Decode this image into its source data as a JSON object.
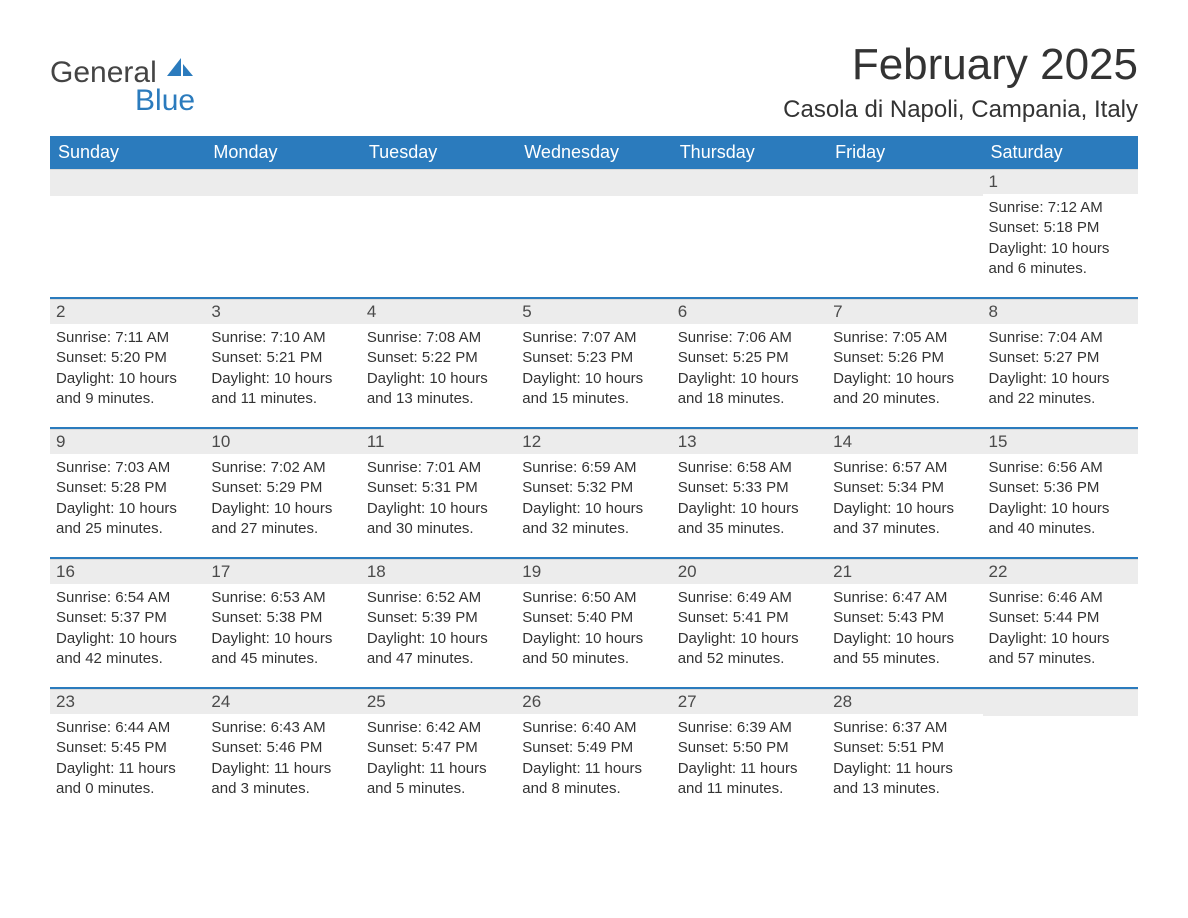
{
  "logo": {
    "text1": "General",
    "text2": "Blue"
  },
  "title": "February 2025",
  "location": "Casola di Napoli, Campania, Italy",
  "colors": {
    "header_bg": "#2b7bbd",
    "header_text": "#ffffff",
    "daynum_bg": "#ececec",
    "sep": "#2b7bbd",
    "text": "#333333",
    "page_bg": "#ffffff"
  },
  "dayNames": [
    "Sunday",
    "Monday",
    "Tuesday",
    "Wednesday",
    "Thursday",
    "Friday",
    "Saturday"
  ],
  "weeks": [
    [
      null,
      null,
      null,
      null,
      null,
      null,
      {
        "n": "1",
        "sr": "Sunrise: 7:12 AM",
        "ss": "Sunset: 5:18 PM",
        "dl": "Daylight: 10 hours and 6 minutes."
      }
    ],
    [
      {
        "n": "2",
        "sr": "Sunrise: 7:11 AM",
        "ss": "Sunset: 5:20 PM",
        "dl": "Daylight: 10 hours and 9 minutes."
      },
      {
        "n": "3",
        "sr": "Sunrise: 7:10 AM",
        "ss": "Sunset: 5:21 PM",
        "dl": "Daylight: 10 hours and 11 minutes."
      },
      {
        "n": "4",
        "sr": "Sunrise: 7:08 AM",
        "ss": "Sunset: 5:22 PM",
        "dl": "Daylight: 10 hours and 13 minutes."
      },
      {
        "n": "5",
        "sr": "Sunrise: 7:07 AM",
        "ss": "Sunset: 5:23 PM",
        "dl": "Daylight: 10 hours and 15 minutes."
      },
      {
        "n": "6",
        "sr": "Sunrise: 7:06 AM",
        "ss": "Sunset: 5:25 PM",
        "dl": "Daylight: 10 hours and 18 minutes."
      },
      {
        "n": "7",
        "sr": "Sunrise: 7:05 AM",
        "ss": "Sunset: 5:26 PM",
        "dl": "Daylight: 10 hours and 20 minutes."
      },
      {
        "n": "8",
        "sr": "Sunrise: 7:04 AM",
        "ss": "Sunset: 5:27 PM",
        "dl": "Daylight: 10 hours and 22 minutes."
      }
    ],
    [
      {
        "n": "9",
        "sr": "Sunrise: 7:03 AM",
        "ss": "Sunset: 5:28 PM",
        "dl": "Daylight: 10 hours and 25 minutes."
      },
      {
        "n": "10",
        "sr": "Sunrise: 7:02 AM",
        "ss": "Sunset: 5:29 PM",
        "dl": "Daylight: 10 hours and 27 minutes."
      },
      {
        "n": "11",
        "sr": "Sunrise: 7:01 AM",
        "ss": "Sunset: 5:31 PM",
        "dl": "Daylight: 10 hours and 30 minutes."
      },
      {
        "n": "12",
        "sr": "Sunrise: 6:59 AM",
        "ss": "Sunset: 5:32 PM",
        "dl": "Daylight: 10 hours and 32 minutes."
      },
      {
        "n": "13",
        "sr": "Sunrise: 6:58 AM",
        "ss": "Sunset: 5:33 PM",
        "dl": "Daylight: 10 hours and 35 minutes."
      },
      {
        "n": "14",
        "sr": "Sunrise: 6:57 AM",
        "ss": "Sunset: 5:34 PM",
        "dl": "Daylight: 10 hours and 37 minutes."
      },
      {
        "n": "15",
        "sr": "Sunrise: 6:56 AM",
        "ss": "Sunset: 5:36 PM",
        "dl": "Daylight: 10 hours and 40 minutes."
      }
    ],
    [
      {
        "n": "16",
        "sr": "Sunrise: 6:54 AM",
        "ss": "Sunset: 5:37 PM",
        "dl": "Daylight: 10 hours and 42 minutes."
      },
      {
        "n": "17",
        "sr": "Sunrise: 6:53 AM",
        "ss": "Sunset: 5:38 PM",
        "dl": "Daylight: 10 hours and 45 minutes."
      },
      {
        "n": "18",
        "sr": "Sunrise: 6:52 AM",
        "ss": "Sunset: 5:39 PM",
        "dl": "Daylight: 10 hours and 47 minutes."
      },
      {
        "n": "19",
        "sr": "Sunrise: 6:50 AM",
        "ss": "Sunset: 5:40 PM",
        "dl": "Daylight: 10 hours and 50 minutes."
      },
      {
        "n": "20",
        "sr": "Sunrise: 6:49 AM",
        "ss": "Sunset: 5:41 PM",
        "dl": "Daylight: 10 hours and 52 minutes."
      },
      {
        "n": "21",
        "sr": "Sunrise: 6:47 AM",
        "ss": "Sunset: 5:43 PM",
        "dl": "Daylight: 10 hours and 55 minutes."
      },
      {
        "n": "22",
        "sr": "Sunrise: 6:46 AM",
        "ss": "Sunset: 5:44 PM",
        "dl": "Daylight: 10 hours and 57 minutes."
      }
    ],
    [
      {
        "n": "23",
        "sr": "Sunrise: 6:44 AM",
        "ss": "Sunset: 5:45 PM",
        "dl": "Daylight: 11 hours and 0 minutes."
      },
      {
        "n": "24",
        "sr": "Sunrise: 6:43 AM",
        "ss": "Sunset: 5:46 PM",
        "dl": "Daylight: 11 hours and 3 minutes."
      },
      {
        "n": "25",
        "sr": "Sunrise: 6:42 AM",
        "ss": "Sunset: 5:47 PM",
        "dl": "Daylight: 11 hours and 5 minutes."
      },
      {
        "n": "26",
        "sr": "Sunrise: 6:40 AM",
        "ss": "Sunset: 5:49 PM",
        "dl": "Daylight: 11 hours and 8 minutes."
      },
      {
        "n": "27",
        "sr": "Sunrise: 6:39 AM",
        "ss": "Sunset: 5:50 PM",
        "dl": "Daylight: 11 hours and 11 minutes."
      },
      {
        "n": "28",
        "sr": "Sunrise: 6:37 AM",
        "ss": "Sunset: 5:51 PM",
        "dl": "Daylight: 11 hours and 13 minutes."
      },
      null
    ]
  ]
}
